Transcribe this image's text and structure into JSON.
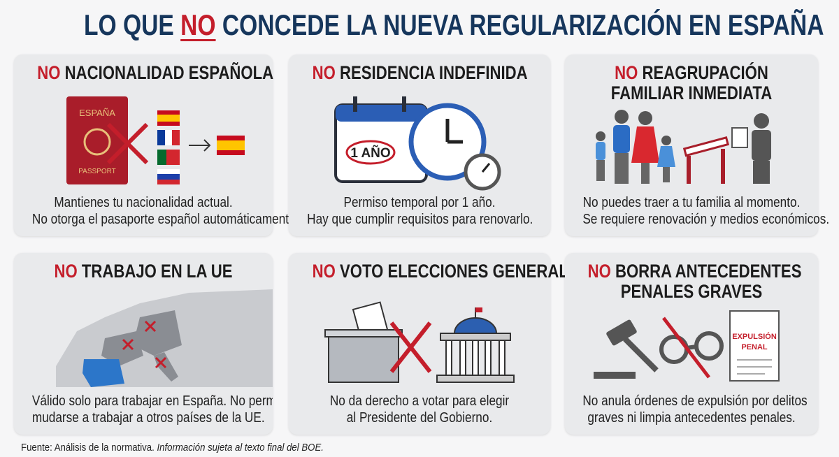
{
  "title": {
    "pre": "LO QUE ",
    "no": "NO",
    "post": " CONCEDE LA NUEVA REGULARIZACIÓN EN ESPAÑA"
  },
  "colors": {
    "navy": "#16365c",
    "red": "#c41e2b",
    "card": "#e9eaec"
  },
  "cards": [
    {
      "no": "NO",
      "title": "NACIONALIDAD ESPAÑOLA",
      "line1": "Mantienes tu nacionalidad actual.",
      "line2": "No otorga el pasaporte español automáticamente.",
      "icons": [
        "passport-icon",
        "cross-icon",
        "flag-spain-icon",
        "flag-france-icon",
        "flag-portugal-icon",
        "flag-russia-icon",
        "arrow-right-icon"
      ],
      "labels": {
        "passport_country": "ESPAÑA",
        "passport_word": "PASSPORT"
      }
    },
    {
      "no": "NO",
      "title": "RESIDENCIA INDEFINIDA",
      "line1": "Permiso temporal por 1 año.",
      "line2": "Hay que cumplir requisitos para renovarlo.",
      "icons": [
        "calendar-icon",
        "clock-icon",
        "stopwatch-icon"
      ],
      "labels": {
        "calendar": "1 AÑO"
      }
    },
    {
      "no": "NO",
      "title": "REAGRUPACIÓN",
      "title2": "FAMILIAR INMEDIATA",
      "line1": "No puedes traer a tu familia al momento.",
      "line2": "Se requiere renovación y medios económicos.",
      "icons": [
        "family-icon",
        "barrier-icon",
        "officer-document-icon"
      ]
    },
    {
      "no": "NO",
      "title": "TRABAJO EN LA UE",
      "line1": "Válido solo para trabajar en España. No permite",
      "line2": "mudarse a trabajar a otros países de la UE.",
      "icons": [
        "europe-map-icon",
        "cross-icon"
      ]
    },
    {
      "no": "NO",
      "title": "VOTO ELECCIONES GENERALES",
      "line1": "No da derecho a votar para elegir",
      "line2": "al Presidente del Gobierno.",
      "icons": [
        "ballot-box-icon",
        "cross-icon",
        "parliament-icon"
      ]
    },
    {
      "no": "NO",
      "title": "BORRA ANTECEDENTES",
      "title2": "PENALES GRAVES",
      "line1": "No anula órdenes de expulsión por delitos",
      "line2": "graves ni limpia antecedentes penales.",
      "icons": [
        "gavel-icon",
        "handcuffs-icon",
        "document-icon"
      ],
      "labels": {
        "doc1": "EXPULSIÓN",
        "doc2": "PENAL"
      }
    }
  ],
  "footer": {
    "source": "Fuente: Análisis de la normativa.",
    "note": "Información sujeta al texto final del BOE."
  }
}
